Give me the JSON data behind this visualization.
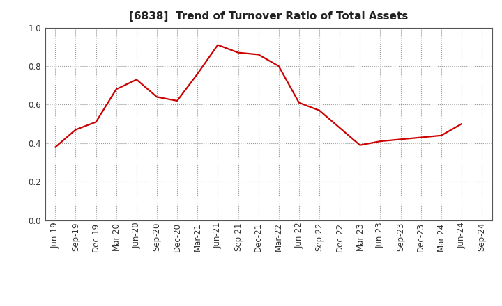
{
  "title": "[6838]  Trend of Turnover Ratio of Total Assets",
  "x_labels": [
    "Jun-19",
    "Sep-19",
    "Dec-19",
    "Mar-20",
    "Jun-20",
    "Sep-20",
    "Dec-20",
    "Mar-21",
    "Jun-21",
    "Sep-21",
    "Dec-21",
    "Mar-22",
    "Jun-22",
    "Sep-22",
    "Dec-22",
    "Mar-23",
    "Jun-23",
    "Sep-23",
    "Dec-23",
    "Mar-24",
    "Jun-24",
    "Sep-24"
  ],
  "y_values": [
    0.38,
    0.47,
    0.51,
    0.68,
    0.73,
    0.64,
    0.62,
    0.76,
    0.91,
    0.87,
    0.86,
    0.8,
    0.61,
    0.57,
    0.48,
    0.39,
    0.41,
    0.42,
    0.43,
    0.44,
    0.5,
    null
  ],
  "line_color": "#cc0000",
  "bg_color": "#ffffff",
  "plot_bg_color": "#ffffff",
  "ylim": [
    0.0,
    1.0
  ],
  "yticks": [
    0.0,
    0.2,
    0.4,
    0.6,
    0.8,
    1.0
  ],
  "grid_color": "#999999",
  "title_fontsize": 11,
  "tick_fontsize": 8.5,
  "line_width": 1.6
}
